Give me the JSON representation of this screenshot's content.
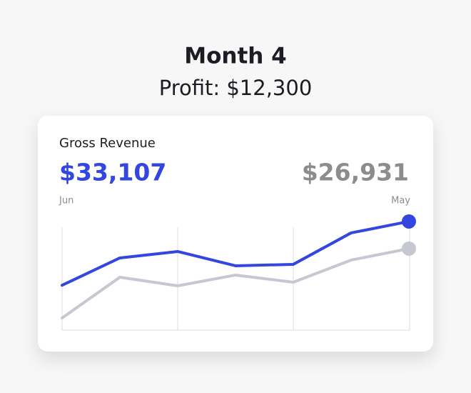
{
  "header": {
    "title": "Month 4",
    "subtitle": "Profit: $12,300"
  },
  "chart_data": {
    "type": "line",
    "title": "Gross Revenue",
    "categories": [
      "Jun",
      null,
      null,
      null,
      null,
      null,
      "May"
    ],
    "series": [
      {
        "color": "#3346e0",
        "values": [
          18600,
          24820,
          26280,
          23030,
          23360,
          30510,
          33107
        ],
        "value_labels": [
          null,
          null,
          null,
          null,
          null,
          null,
          "$33,107"
        ]
      },
      {
        "color": "#c5c8d0",
        "label_color": "#8c8c8c",
        "values": [
          11170,
          20430,
          18480,
          20920,
          19290,
          24330,
          26931
        ],
        "value_labels": [
          null,
          null,
          null,
          null,
          null,
          null,
          "$26,931"
        ]
      }
    ],
    "ylim": [
      8400,
      34400
    ],
    "grid": true
  }
}
